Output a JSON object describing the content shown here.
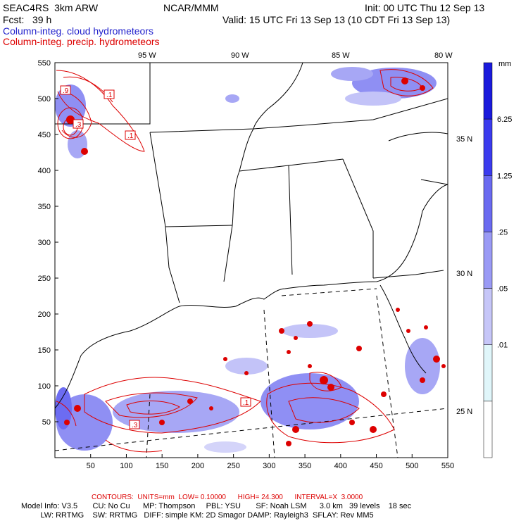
{
  "header": {
    "model": "SEAC4RS  3km ARW",
    "org": "NCAR/MMM",
    "init": "Init: 00 UTC Thu 12 Sep 13",
    "fcst": "Fcst:   39 h",
    "valid": "Valid: 15 UTC Fri 13 Sep 13 (10 CDT Fri 13 Sep 13)",
    "field_cloud": "Column-integ. cloud hydrometeors",
    "field_precip": "Column-integ. precip. hydrometeors"
  },
  "axes": {
    "x_ticks": [
      "50",
      "100",
      "150",
      "200",
      "250",
      "300",
      "350",
      "400",
      "450",
      "500",
      "550"
    ],
    "y_ticks": [
      "50",
      "100",
      "150",
      "200",
      "250",
      "300",
      "350",
      "400",
      "450",
      "500",
      "550"
    ],
    "lon_labels": [
      "95 W",
      "90 W",
      "85 W",
      "80 W"
    ],
    "lat_labels": [
      "35 N",
      "30 N",
      "25 N"
    ]
  },
  "colorbar": {
    "unit": "mm",
    "labels": [
      "6.25",
      "1.25",
      ".25",
      ".05",
      ".01"
    ],
    "colors": [
      "#1a1adc",
      "#3b3bee",
      "#6a6af0",
      "#9a9af5",
      "#c6c6f8",
      "#e0f6fa",
      "#ffffff"
    ]
  },
  "contour_labels": [
    ".9",
    ".3",
    ".1",
    ".1",
    ".3",
    ".1"
  ],
  "footer": {
    "contours": "CONTOURS:  UNITS=mm  LOW= 0.10000      HIGH= 24.300      INTERVAL=X  3.0000",
    "line1": "Model Info: V3.5       CU: No Cu      MP: Thompson     PBL: YSU       SF: Noah LSM      3.0 km   39 levels    18 sec",
    "line2": "         LW: RRTMG    SW: RRTMG   DIFF: simple KM: 2D Smagor DAMP: Rayleigh3  SFLAY: Rev MM5"
  },
  "colors": {
    "cloud": "#2222cc",
    "precip": "#dd0000"
  }
}
